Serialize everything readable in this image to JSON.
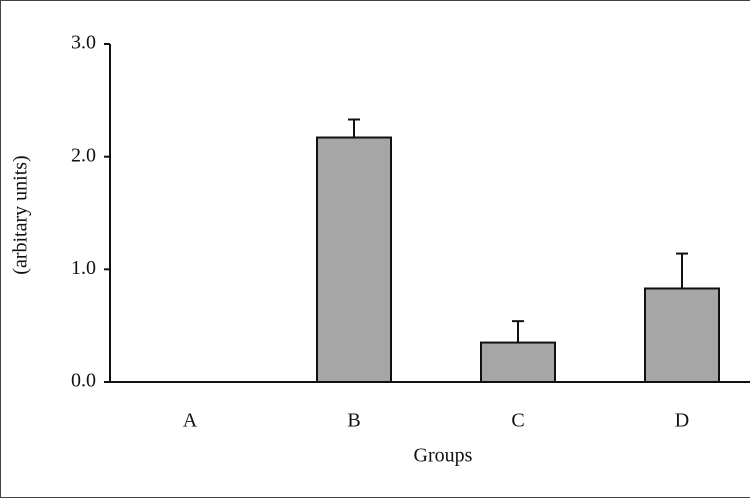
{
  "chart_data": {
    "type": "bar",
    "y_label": "(arbitary units)",
    "x_label": "Groups",
    "categories": [
      "A",
      "B",
      "C",
      "D"
    ],
    "values": [
      0,
      2.17,
      0.35,
      0.83
    ],
    "errors": [
      null,
      0.16,
      0.19,
      0.31
    ],
    "color": "#a6a6a6",
    "ylim": [
      0,
      3
    ],
    "yticks": [
      {
        "value": 0,
        "label": "0.0"
      },
      {
        "value": 1,
        "label": "1.0"
      },
      {
        "value": 2,
        "label": "2.0"
      },
      {
        "value": 3,
        "label": "3.0"
      }
    ]
  }
}
